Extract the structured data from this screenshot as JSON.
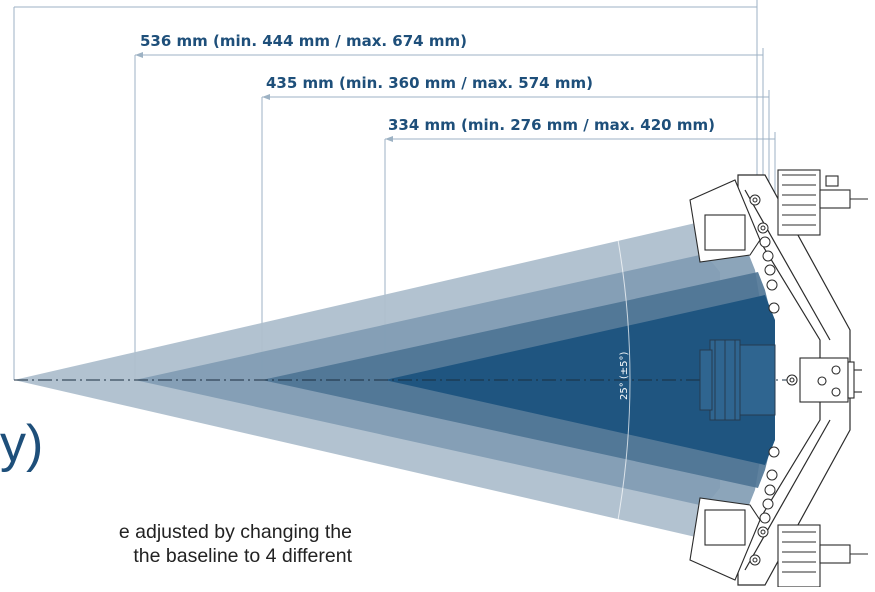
{
  "dimensions": [
    {
      "label": "536 mm (min. 444 mm / max. 674 mm)"
    },
    {
      "label": "435 mm (min. 360 mm / max. 574 mm)"
    },
    {
      "label": "334 mm (min. 276 mm / max. 420 mm)"
    }
  ],
  "angle_label": "25° (±5°)",
  "heading_fragment": "y)",
  "body_lines": [
    "e adjusted by changing the",
    "the baseline to 4 different"
  ],
  "colors": {
    "accent": "#1e4f7a",
    "cone_outer": "#aebfcd",
    "cone_2": "#7f9bb2",
    "cone_3": "#4d7394",
    "cone_inner": "#1f5580",
    "dimension_line": "#9db2c4"
  }
}
